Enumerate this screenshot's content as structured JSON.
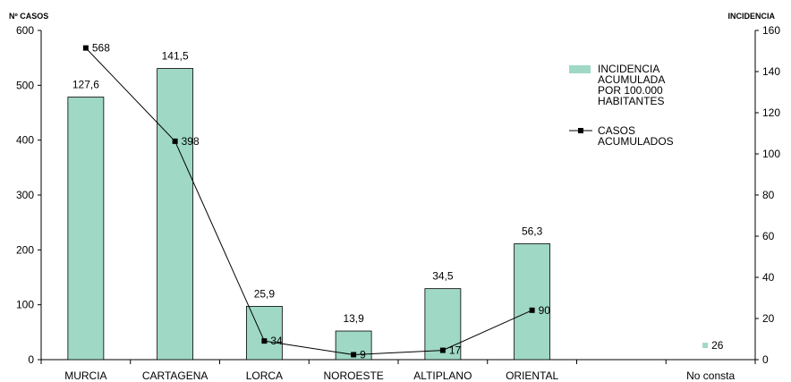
{
  "chart_data": {
    "type": "bar",
    "title": "",
    "y_left_title": "Nº CASOS",
    "y_right_title": "INCIDENCIA",
    "categories": [
      "MURCIA",
      "CARTAGENA",
      "LORCA",
      "NOROESTE",
      "ALTIPLANO",
      "ORIENTAL",
      "",
      "No consta"
    ],
    "y_left_ticks": [
      0,
      100,
      200,
      300,
      400,
      500,
      600
    ],
    "y_right_ticks": [
      0,
      20,
      40,
      60,
      80,
      100,
      120,
      140,
      160
    ],
    "ylim_left": [
      0,
      600
    ],
    "ylim_right": [
      0,
      160
    ],
    "series": [
      {
        "name": "INCIDENCIA ACUMULADA POR 100.000 HABITANTES",
        "type": "bar",
        "axis": "right",
        "values": [
          127.6,
          141.5,
          25.9,
          13.9,
          34.5,
          56.3,
          null,
          null
        ],
        "labels": [
          "127,6",
          "141,5",
          "25,9",
          "13,9",
          "34,5",
          "56,3",
          "",
          ""
        ],
        "color": "#9fd8c4"
      },
      {
        "name": "CASOS ACUMULADOS",
        "type": "line",
        "axis": "left",
        "values": [
          568,
          398,
          34,
          9,
          17,
          90,
          null,
          null
        ],
        "labels": [
          "568",
          "398",
          "34",
          "9",
          "17",
          "90",
          "",
          ""
        ],
        "color": "#000000"
      }
    ],
    "extra_point": {
      "category": "No consta",
      "value": 26,
      "label": "26",
      "color": "#9fd8c4"
    },
    "legend": {
      "position": "top-right",
      "items": [
        {
          "lines": [
            "INCIDENCIA",
            "ACUMULADA",
            "POR 100.000",
            "HABITANTES"
          ],
          "kind": "bar"
        },
        {
          "lines": [
            "CASOS",
            "ACUMULADOS"
          ],
          "kind": "line"
        }
      ]
    },
    "grid": false
  }
}
